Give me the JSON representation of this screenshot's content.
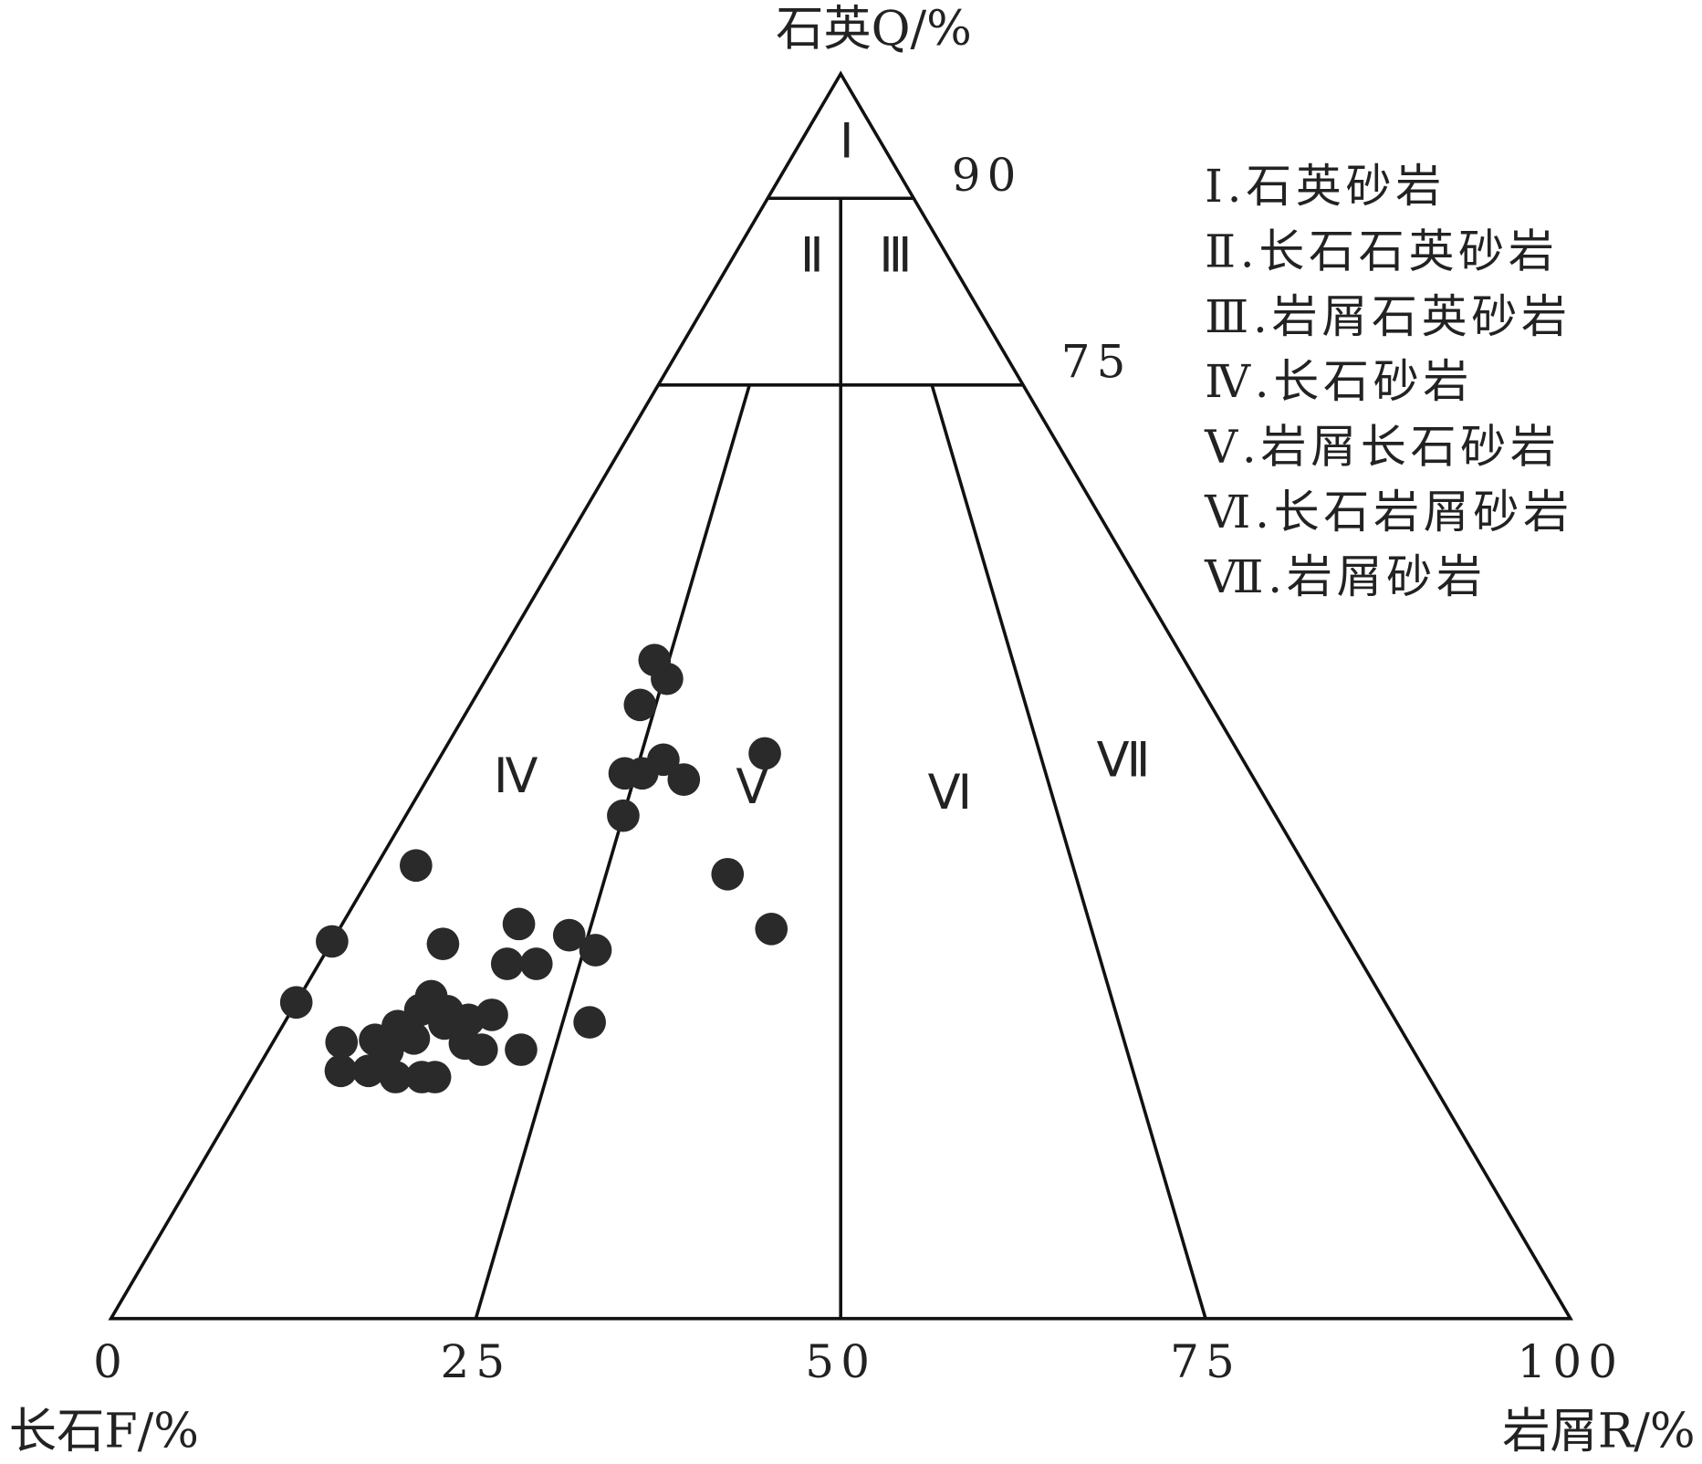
{
  "chart_data": {
    "type": "ternary",
    "top_label": "石英Q/%",
    "left_label": "长石F/%",
    "right_label": "岩屑R/%",
    "base_ticks": [
      0,
      25,
      50,
      75,
      100
    ],
    "q_ticks": [
      90,
      75
    ],
    "regions": [
      "Ⅰ",
      "Ⅱ",
      "Ⅲ",
      "Ⅳ",
      "Ⅴ",
      "Ⅵ",
      "Ⅶ"
    ],
    "legend": [
      "Ⅰ.石英砂岩",
      "Ⅱ.长石石英砂岩",
      "Ⅲ.岩屑石英砂岩",
      "Ⅳ.长石砂岩",
      "Ⅴ.岩屑长石砂岩",
      "Ⅵ.长石岩屑砂岩",
      "Ⅶ.岩屑砂岩"
    ],
    "color": "#2a2a2a",
    "q": [
      52.9,
      51.4,
      49.3,
      45.4,
      44.9,
      43.8,
      43.8,
      43.3,
      40.4,
      36.4,
      35.7,
      31.3,
      30.3,
      31.7,
      30.1,
      30.8,
      29.6,
      28.5,
      28.5,
      25.4,
      25.9,
      24.8,
      24.7,
      24.0,
      24.4,
      23.8,
      23.5,
      23.7,
      22.5,
      22.4,
      22.2,
      22.1,
      21.6,
      21.6,
      21.5,
      19.9,
      19.9,
      19.4,
      19.4,
      19.4
    ],
    "r": [
      10.8,
      12.4,
      11.6,
      22.1,
      15.4,
      13.3,
      14.5,
      17.6,
      14.9,
      2.7,
      24.4,
      29.6,
      0.0,
      12.1,
      7.7,
      16.0,
      18.4,
      12.9,
      14.9,
      0.0,
      9.0,
      8.8,
      10.7,
      12.5,
      13.9,
      20.9,
      7.9,
      11.0,
      9.5,
      6.9,
      4.7,
      13.2,
      14.6,
      17.3,
      8.2,
      5.8,
      7.7,
      9.8,
      11.6,
      12.5
    ]
  }
}
